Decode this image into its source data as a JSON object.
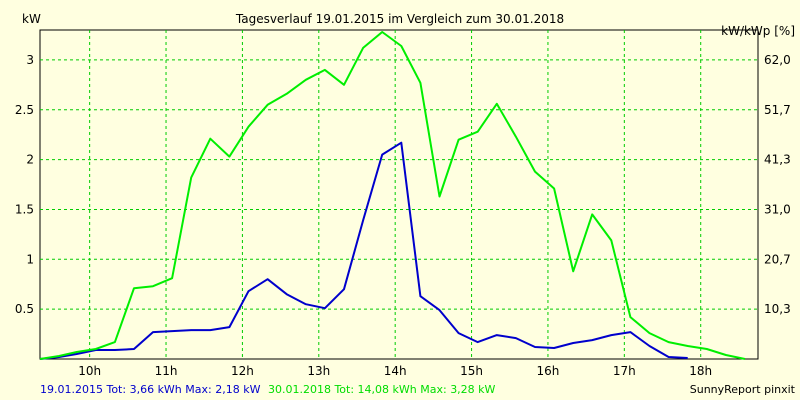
{
  "chart_data": {
    "type": "line",
    "title": "Tagesverlauf 19.01.2015 im Vergleich zum 30.01.2018",
    "ylabel_left": "kW",
    "ylabel_right": "kW/kWp [%]",
    "xlim": [
      9.35,
      18.75
    ],
    "ylim": [
      0,
      3.3
    ],
    "grid": true,
    "x_ticks": [
      10,
      11,
      12,
      13,
      14,
      15,
      16,
      17,
      18
    ],
    "x_tick_labels": [
      "10h",
      "11h",
      "12h",
      "13h",
      "14h",
      "15h",
      "16h",
      "17h",
      "18h"
    ],
    "y_left_ticks": [
      0.5,
      1,
      1.5,
      2,
      2.5,
      3
    ],
    "y_left_tick_labels": [
      "0.5",
      "1",
      "1.5",
      "2",
      "2.5",
      "3"
    ],
    "y_right_tick_labels": [
      "10,3",
      "20,7",
      "31,0",
      "41,3",
      "51,7",
      "62,0"
    ],
    "series": [
      {
        "name": "19.01.2015",
        "color": "#0000cc",
        "points": [
          [
            9.35,
            0.0
          ],
          [
            9.6,
            0.02
          ],
          [
            9.83,
            0.05
          ],
          [
            10.08,
            0.09
          ],
          [
            10.33,
            0.09
          ],
          [
            10.58,
            0.1
          ],
          [
            10.83,
            0.27
          ],
          [
            11.08,
            0.28
          ],
          [
            11.33,
            0.29
          ],
          [
            11.58,
            0.29
          ],
          [
            11.83,
            0.32
          ],
          [
            12.08,
            0.68
          ],
          [
            12.33,
            0.8
          ],
          [
            12.58,
            0.65
          ],
          [
            12.83,
            0.55
          ],
          [
            13.08,
            0.51
          ],
          [
            13.33,
            0.7
          ],
          [
            13.58,
            1.39
          ],
          [
            13.83,
            2.05
          ],
          [
            14.08,
            2.17
          ],
          [
            14.33,
            0.63
          ],
          [
            14.58,
            0.49
          ],
          [
            14.83,
            0.26
          ],
          [
            15.08,
            0.17
          ],
          [
            15.33,
            0.24
          ],
          [
            15.58,
            0.21
          ],
          [
            15.83,
            0.12
          ],
          [
            16.08,
            0.11
          ],
          [
            16.33,
            0.16
          ],
          [
            16.58,
            0.19
          ],
          [
            16.83,
            0.24
          ],
          [
            17.08,
            0.27
          ],
          [
            17.33,
            0.13
          ],
          [
            17.58,
            0.02
          ],
          [
            17.83,
            0.01
          ]
        ]
      },
      {
        "name": "30.01.2018",
        "color": "#00ee00",
        "points": [
          [
            9.35,
            0.0
          ],
          [
            9.6,
            0.03
          ],
          [
            9.83,
            0.07
          ],
          [
            10.08,
            0.1
          ],
          [
            10.33,
            0.17
          ],
          [
            10.58,
            0.71
          ],
          [
            10.83,
            0.73
          ],
          [
            11.08,
            0.81
          ],
          [
            11.33,
            1.82
          ],
          [
            11.58,
            2.21
          ],
          [
            11.83,
            2.03
          ],
          [
            12.08,
            2.33
          ],
          [
            12.33,
            2.55
          ],
          [
            12.58,
            2.66
          ],
          [
            12.83,
            2.8
          ],
          [
            13.08,
            2.9
          ],
          [
            13.33,
            2.75
          ],
          [
            13.58,
            3.12
          ],
          [
            13.83,
            3.28
          ],
          [
            14.08,
            3.14
          ],
          [
            14.33,
            2.77
          ],
          [
            14.58,
            1.63
          ],
          [
            14.83,
            2.2
          ],
          [
            15.08,
            2.28
          ],
          [
            15.33,
            2.56
          ],
          [
            15.58,
            2.23
          ],
          [
            15.83,
            1.88
          ],
          [
            16.08,
            1.71
          ],
          [
            16.33,
            0.88
          ],
          [
            16.58,
            1.45
          ],
          [
            16.83,
            1.19
          ],
          [
            17.08,
            0.42
          ],
          [
            17.33,
            0.26
          ],
          [
            17.58,
            0.17
          ],
          [
            17.83,
            0.13
          ],
          [
            18.08,
            0.1
          ],
          [
            18.33,
            0.04
          ],
          [
            18.58,
            0.0
          ]
        ]
      }
    ]
  },
  "footer": {
    "series1_summary": "19.01.2015 Tot: 3,66 kWh Max: 2,18 kW",
    "series2_summary": "30.01.2018 Tot: 14,08 kWh Max: 3,28 kW",
    "credit": "SunnyReport pinxit"
  }
}
